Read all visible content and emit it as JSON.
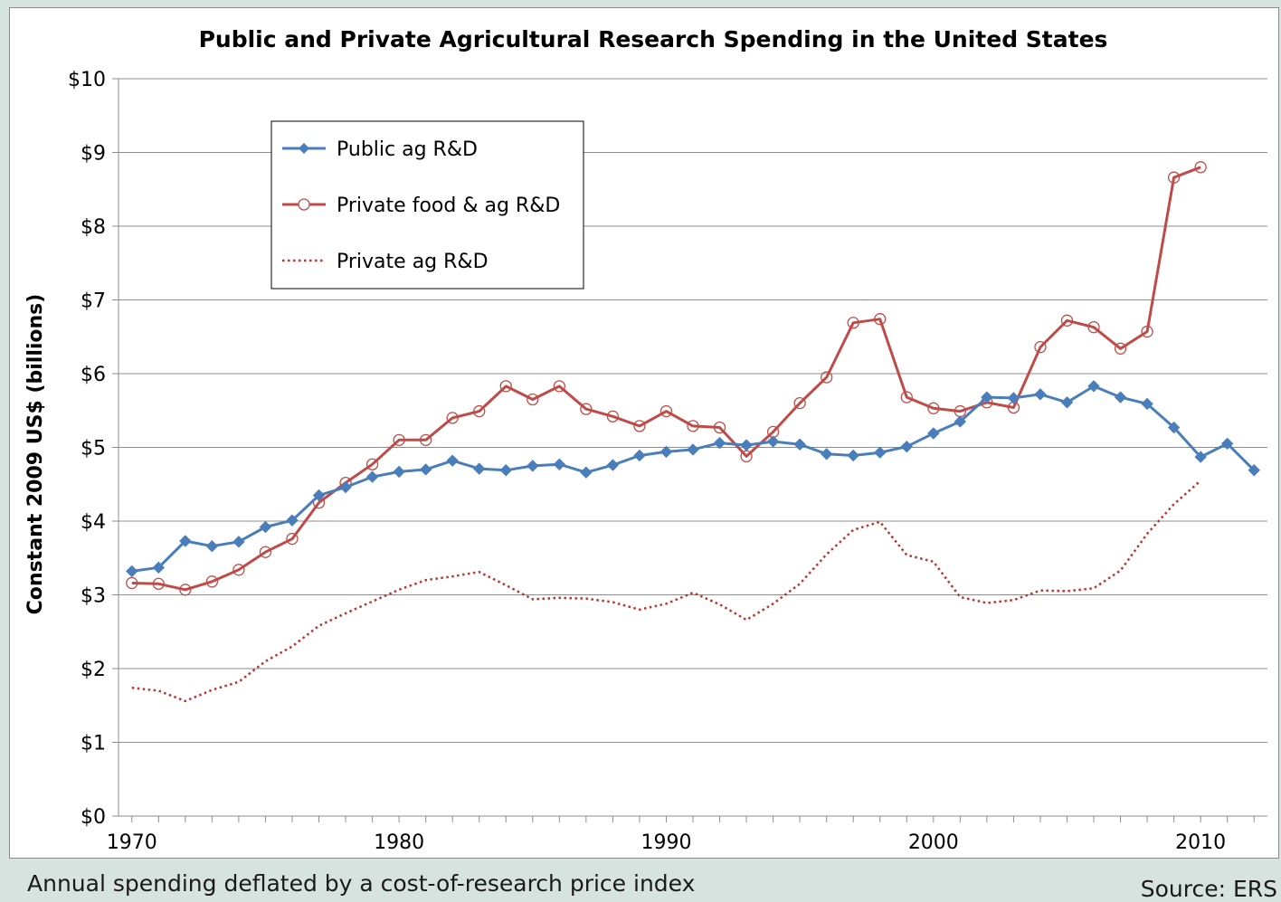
{
  "footer": {
    "note": "Annual spending deflated by a cost-of-research price index",
    "source": "Source: ERS"
  },
  "colors": {
    "public": "#4a7ebb",
    "private_food_ag": "#be4b48",
    "private_ag": "#c0302e",
    "grid": "#8c8c8c",
    "page_background": "#d7e3df"
  },
  "chart_data": {
    "type": "line",
    "title": "Public and Private Agricultural Research Spending in the United States",
    "ylabel": "Constant 2009 US$ (billions)",
    "xlabel": "",
    "xlim": [
      1969.5,
      2012.5
    ],
    "ylim": [
      0,
      10
    ],
    "yticks": [
      0,
      1,
      2,
      3,
      4,
      5,
      6,
      7,
      8,
      9,
      10
    ],
    "ytick_labels": [
      "$0",
      "$1",
      "$2",
      "$3",
      "$4",
      "$5",
      "$6",
      "$7",
      "$8",
      "$9",
      "$10"
    ],
    "xtick_labels": [
      "1970",
      "1980",
      "1990",
      "2000",
      "2010"
    ],
    "xtick_values": [
      1970,
      1980,
      1990,
      2000,
      2010
    ],
    "grid": "horizontal",
    "legend_position": "top-left",
    "series": [
      {
        "name": "Public ag R&D",
        "style": "solid-diamond",
        "x": [
          1970,
          1971,
          1972,
          1973,
          1974,
          1975,
          1976,
          1977,
          1978,
          1979,
          1980,
          1981,
          1982,
          1983,
          1984,
          1985,
          1986,
          1987,
          1988,
          1989,
          1990,
          1991,
          1992,
          1993,
          1994,
          1995,
          1996,
          1997,
          1998,
          1999,
          2000,
          2001,
          2002,
          2003,
          2004,
          2005,
          2006,
          2007,
          2008,
          2009,
          2010,
          2011,
          2012
        ],
        "values": [
          3.32,
          3.37,
          3.73,
          3.66,
          3.72,
          3.92,
          4.01,
          4.35,
          4.46,
          4.6,
          4.67,
          4.7,
          4.82,
          4.71,
          4.69,
          4.75,
          4.77,
          4.66,
          4.76,
          4.89,
          4.94,
          4.97,
          5.06,
          5.03,
          5.08,
          5.04,
          4.91,
          4.89,
          4.93,
          5.01,
          5.19,
          5.35,
          5.68,
          5.67,
          5.72,
          5.61,
          5.83,
          5.68,
          5.59,
          5.27,
          4.87,
          5.05,
          4.69
        ]
      },
      {
        "name": "Private food & ag R&D",
        "style": "solid-circle",
        "x": [
          1970,
          1971,
          1972,
          1973,
          1974,
          1975,
          1976,
          1977,
          1978,
          1979,
          1980,
          1981,
          1982,
          1983,
          1984,
          1985,
          1986,
          1987,
          1988,
          1989,
          1990,
          1991,
          1992,
          1993,
          1994,
          1995,
          1996,
          1997,
          1998,
          1999,
          2000,
          2001,
          2002,
          2003,
          2004,
          2005,
          2006,
          2007,
          2008,
          2009,
          2010
        ],
        "values": [
          3.16,
          3.15,
          3.07,
          3.18,
          3.34,
          3.58,
          3.76,
          4.25,
          4.52,
          4.77,
          5.1,
          5.1,
          5.4,
          5.49,
          5.83,
          5.65,
          5.83,
          5.52,
          5.42,
          5.29,
          5.49,
          5.29,
          5.27,
          4.88,
          5.21,
          5.6,
          5.95,
          6.69,
          6.74,
          5.68,
          5.53,
          5.49,
          5.61,
          5.54,
          6.36,
          6.72,
          6.63,
          6.34,
          6.57,
          8.66,
          8.8
        ]
      },
      {
        "name": "Private ag R&D",
        "style": "dotted",
        "x": [
          1970,
          1971,
          1972,
          1973,
          1974,
          1975,
          1976,
          1977,
          1978,
          1979,
          1980,
          1981,
          1982,
          1983,
          1984,
          1985,
          1986,
          1987,
          1988,
          1989,
          1990,
          1991,
          1992,
          1993,
          1994,
          1995,
          1996,
          1997,
          1998,
          1999,
          2000,
          2001,
          2002,
          2003,
          2004,
          2005,
          2006,
          2007,
          2008,
          2009,
          2010
        ],
        "values": [
          1.74,
          1.7,
          1.56,
          1.71,
          1.82,
          2.1,
          2.3,
          2.58,
          2.75,
          2.91,
          3.07,
          3.2,
          3.25,
          3.31,
          3.13,
          2.94,
          2.96,
          2.95,
          2.9,
          2.8,
          2.88,
          3.03,
          2.87,
          2.66,
          2.88,
          3.15,
          3.55,
          3.88,
          3.99,
          3.54,
          3.45,
          2.97,
          2.89,
          2.93,
          3.06,
          3.05,
          3.09,
          3.33,
          3.83,
          4.23,
          4.55
        ]
      }
    ]
  }
}
